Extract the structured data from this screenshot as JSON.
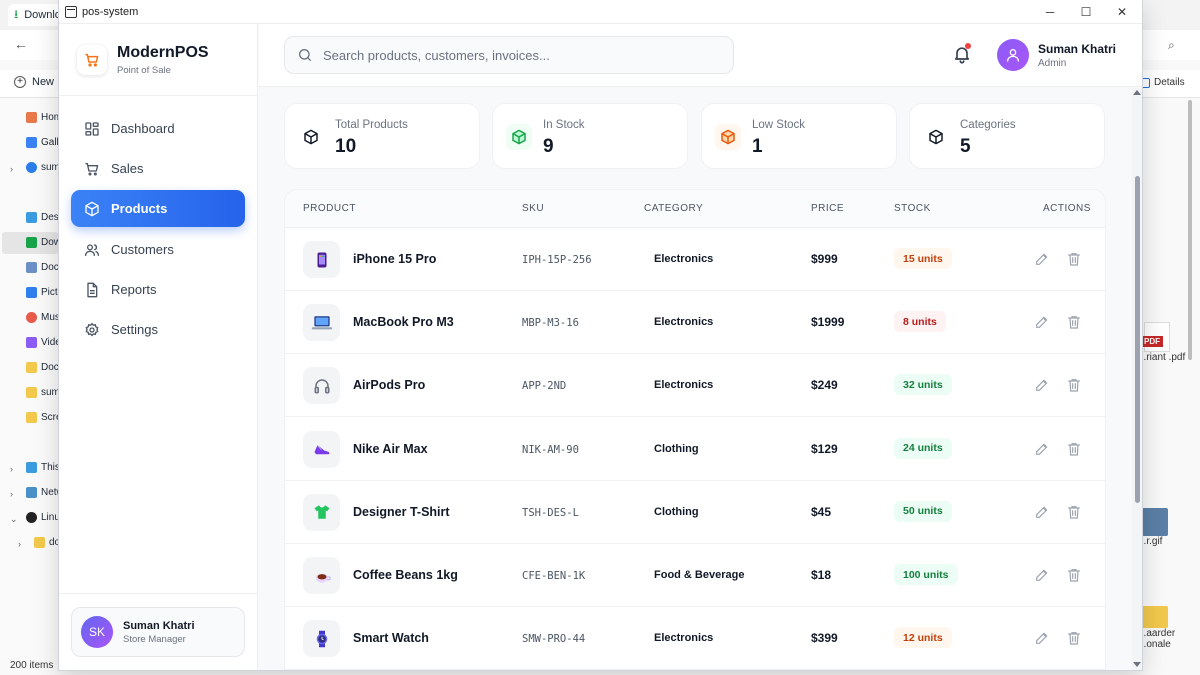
{
  "explorer": {
    "tab_label": "Downloads",
    "new_label": "New",
    "details_label": "Details",
    "status": "200 items",
    "sidebar": [
      "Home",
      "Gallery",
      "suman",
      "Desktop",
      "Downloads",
      "Documents",
      "Pictures",
      "Music",
      "Videos",
      "Documents",
      "suman",
      "Screenshots",
      "This PC",
      "Network",
      "Linux",
      "docker"
    ],
    "files": [
      "...riant .pdf",
      "...r.gif",
      "...aarder ...onale"
    ]
  },
  "window": {
    "title": "pos-system"
  },
  "brand": {
    "name": "ModernPOS",
    "subtitle": "Point of Sale"
  },
  "nav": [
    {
      "label": "Dashboard",
      "icon": "grid-icon"
    },
    {
      "label": "Sales",
      "icon": "cart-icon"
    },
    {
      "label": "Products",
      "icon": "box-icon"
    },
    {
      "label": "Customers",
      "icon": "users-icon"
    },
    {
      "label": "Reports",
      "icon": "file-icon"
    },
    {
      "label": "Settings",
      "icon": "gear-icon"
    }
  ],
  "user_card": {
    "initials": "SK",
    "name": "Suman Khatri",
    "role": "Store Manager"
  },
  "header": {
    "search_placeholder": "Search products, customers, invoices...",
    "user_name": "Suman Khatri",
    "user_role": "Admin"
  },
  "stats": [
    {
      "label": "Total Products",
      "value": "10",
      "color": "#111827"
    },
    {
      "label": "In Stock",
      "value": "9",
      "color": "#16a34a"
    },
    {
      "label": "Low Stock",
      "value": "1",
      "color": "#ea580c"
    },
    {
      "label": "Categories",
      "value": "5",
      "color": "#111827"
    }
  ],
  "table": {
    "headers": [
      "PRODUCT",
      "SKU",
      "CATEGORY",
      "PRICE",
      "STOCK",
      "ACTIONS"
    ],
    "rows": [
      {
        "name": "iPhone 15 Pro",
        "sku": "IPH-15P-256",
        "category": "Electronics",
        "price": "$999",
        "stock": "15 units",
        "level": "mid",
        "icon": "phone-icon"
      },
      {
        "name": "MacBook Pro M3",
        "sku": "MBP-M3-16",
        "category": "Electronics",
        "price": "$1999",
        "stock": "8 units",
        "level": "low",
        "icon": "laptop-icon"
      },
      {
        "name": "AirPods Pro",
        "sku": "APP-2ND",
        "category": "Electronics",
        "price": "$249",
        "stock": "32 units",
        "level": "ok",
        "icon": "headphones-icon"
      },
      {
        "name": "Nike Air Max",
        "sku": "NIK-AM-90",
        "category": "Clothing",
        "price": "$129",
        "stock": "24 units",
        "level": "ok",
        "icon": "shoe-icon"
      },
      {
        "name": "Designer T-Shirt",
        "sku": "TSH-DES-L",
        "category": "Clothing",
        "price": "$45",
        "stock": "50 units",
        "level": "ok",
        "icon": "tshirt-icon"
      },
      {
        "name": "Coffee Beans 1kg",
        "sku": "CFE-BEN-1K",
        "category": "Food & Beverage",
        "price": "$18",
        "stock": "100 units",
        "level": "ok",
        "icon": "coffee-icon"
      },
      {
        "name": "Smart Watch",
        "sku": "SMW-PRO-44",
        "category": "Electronics",
        "price": "$399",
        "stock": "12 units",
        "level": "mid",
        "icon": "watch-icon"
      }
    ]
  }
}
